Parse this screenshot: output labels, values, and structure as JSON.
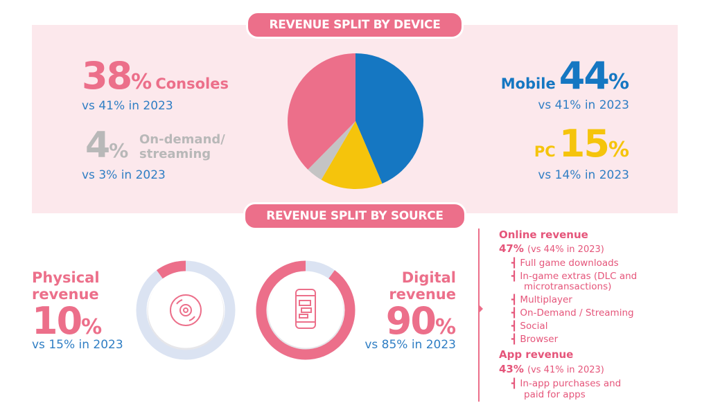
{
  "device": {
    "banner": "REVENUE SPLIT BY DEVICE",
    "consoles": {
      "value": "38",
      "pct": "%",
      "label": "Consoles",
      "compare": "vs 41% in 2023"
    },
    "ondemand": {
      "value": "4",
      "pct": "%",
      "label_line1": "On-demand/",
      "label_line2": "streaming",
      "compare": "vs 3% in 2023"
    },
    "mobile": {
      "value": "44",
      "pct": "%",
      "label": "Mobile",
      "compare": "vs 41% in 2023"
    },
    "pc": {
      "value": "15",
      "pct": "%",
      "label": "PC",
      "compare": "vs 14% in 2023"
    }
  },
  "source": {
    "banner": "REVENUE SPLIT BY SOURCE",
    "physical": {
      "label_line1": "Physical",
      "label_line2": "revenue",
      "value": "10",
      "pct": "%",
      "compare": "vs 15% in 2023"
    },
    "digital": {
      "label_line1": "Digital",
      "label_line2": "revenue",
      "value": "90",
      "pct": "%",
      "compare": "vs 85% in 2023"
    },
    "online": {
      "title": "Online revenue",
      "value": "47%",
      "compare": "(vs 44% in 2023)",
      "items": [
        "Full game downloads",
        "In-game extras (DLC and",
        "microtransactions)",
        "Multiplayer",
        "On-Demand / Streaming",
        "Social",
        "Browser"
      ]
    },
    "app": {
      "title": "App revenue",
      "value": "43%",
      "compare": "(vs 41% in 2023)",
      "items": [
        "In-app purchases and",
        "paid for apps"
      ]
    }
  },
  "colors": {
    "pink": "#ec6f8a",
    "mobile_blue": "#1577c2",
    "pc_yellow": "#f5c40c",
    "ondemand_grey": "#c4c4c4",
    "ring_track": "#dbe3f2"
  },
  "icons": {
    "physical": "disc-icon",
    "digital": "smartphone-icon"
  },
  "chart_data": [
    {
      "type": "pie",
      "categories": [
        "Mobile",
        "PC",
        "On-demand/streaming",
        "Consoles"
      ],
      "values": [
        44,
        15,
        4,
        38
      ],
      "colors": [
        "#1577c2",
        "#f5c40c",
        "#c4c4c4",
        "#ec6f8a"
      ]
    },
    {
      "type": "pie",
      "categories": [
        "Physical revenue"
      ],
      "values": [
        10
      ],
      "colors": [
        "#ec6f8a"
      ]
    },
    {
      "type": "pie",
      "categories": [
        "Digital revenue"
      ],
      "values": [
        90
      ],
      "colors": [
        "#ec6f8a"
      ]
    }
  ]
}
